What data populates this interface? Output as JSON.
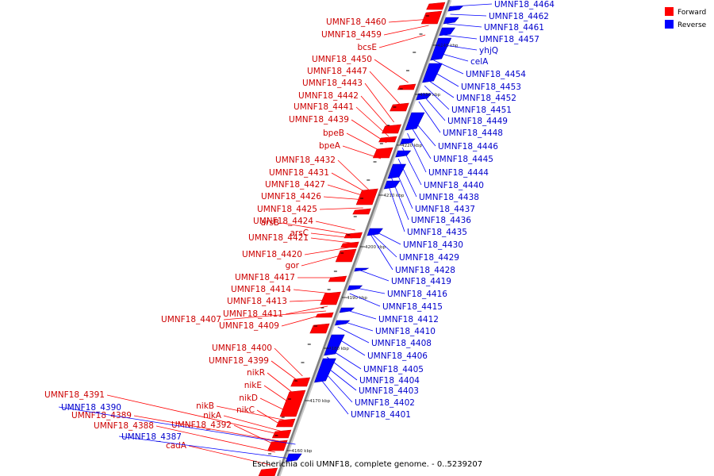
{
  "legend": {
    "forward": {
      "label": "Forward",
      "color": "#ff0000"
    },
    "reverse": {
      "label": "Reverse",
      "color": "#0000ff"
    }
  },
  "caption": "Escherichia coli UMNF18, complete genome. - 0..5239207",
  "ticks": [
    "4240 kbp",
    "4230 kbp",
    "4220 kbp",
    "4210 kbp",
    "4200 kbp",
    "4190 kbp",
    "4180 kbp",
    "4170 kbp",
    "4160 kbp"
  ],
  "forward_labels": [
    "UMNF18_4460",
    "UMNF18_4459",
    "bcsE",
    "UMNF18_4450",
    "UMNF18_4447",
    "UMNF18_4443",
    "UMNF18_4442",
    "UMNF18_4441",
    "UMNF18_4439",
    "bpeB",
    "bpeA",
    "UMNF18_4432",
    "UMNF18_4431",
    "UMNF18_4427",
    "UMNF18_4426",
    "UMNF18_4425",
    "UMNF18_4424",
    "arsB",
    "arsC",
    "UMNF18_4421",
    "UMNF18_4420",
    "gor",
    "UMNF18_4417",
    "UMNF18_4414",
    "UMNF18_4413",
    "UMNF18_4411",
    "UMNF18_4407",
    "UMNF18_4409",
    "UMNF18_4400",
    "UMNF18_4399",
    "nikR",
    "nikE",
    "nikD",
    "nikB",
    "nikC",
    "nikA",
    "UMNF18_4391",
    "UMNF18_4389",
    "UMNF18_4392",
    "UMNF18_4388",
    "cadA"
  ],
  "reverse_labels": [
    "UMNF18_4464",
    "UMNF18_4462",
    "UMNF18_4461",
    "UMNF18_4457",
    "yhjQ",
    "celA",
    "UMNF18_4454",
    "UMNF18_4453",
    "UMNF18_4452",
    "UMNF18_4451",
    "UMNF18_4449",
    "UMNF18_4448",
    "UMNF18_4446",
    "UMNF18_4445",
    "UMNF18_4444",
    "UMNF18_4440",
    "UMNF18_4438",
    "UMNF18_4437",
    "UMNF18_4436",
    "UMNF18_4435",
    "UMNF18_4430",
    "UMNF18_4429",
    "UMNF18_4428",
    "UMNF18_4419",
    "UMNF18_4416",
    "UMNF18_4415",
    "UMNF18_4412",
    "UMNF18_4410",
    "UMNF18_4408",
    "UMNF18_4406",
    "UMNF18_4405",
    "UMNF18_4404",
    "UMNF18_4403",
    "UMNF18_4402",
    "UMNF18_4401",
    "UMNF18_4390",
    "UMNF18_4387"
  ]
}
